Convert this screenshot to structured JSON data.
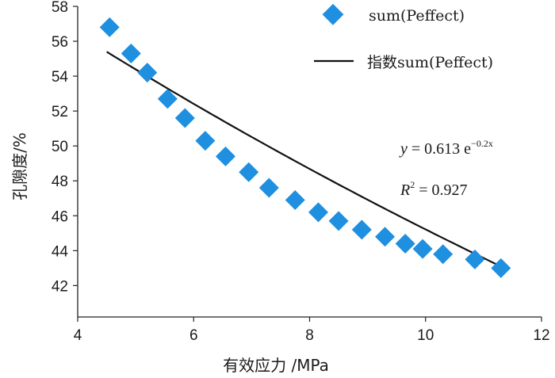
{
  "chart_data": {
    "type": "scatter",
    "xlabel": "有效应力 /MPa",
    "ylabel": "孔隙度/%",
    "xlim": [
      4,
      12
    ],
    "ylim": [
      40.2,
      58
    ],
    "xticks": [
      "4",
      "6",
      "8",
      "10",
      "12"
    ],
    "yticks": [
      "42",
      "44",
      "46",
      "48",
      "50",
      "52",
      "54",
      "56",
      "58"
    ],
    "legend_position": "top-right",
    "series": [
      {
        "name": "sum(Peffect)",
        "kind": "scatter",
        "marker": "diamond",
        "color": "#1f8fe0",
        "x": [
          4.55,
          4.92,
          5.2,
          5.55,
          5.85,
          6.2,
          6.55,
          6.95,
          7.3,
          7.75,
          8.15,
          8.5,
          8.9,
          9.3,
          9.65,
          9.95,
          10.3,
          10.85,
          11.3
        ],
        "y": [
          56.8,
          55.3,
          54.2,
          52.7,
          51.6,
          50.3,
          49.4,
          48.5,
          47.6,
          46.9,
          46.2,
          45.7,
          45.2,
          44.8,
          44.4,
          44.1,
          43.8,
          43.5,
          43.0
        ]
      },
      {
        "name": "指数sum(Peffect)",
        "kind": "line",
        "color": "#111111",
        "x_range": [
          4.5,
          11.3
        ],
        "y_start": 55.4,
        "y_end": 43.1
      }
    ],
    "annotation": {
      "equation_var": "y",
      "equation_eq": " = 0.613 e",
      "equation_exp": "−0.2x",
      "r2_var": "R",
      "r2_sup": "2",
      "r2_value": " = 0.927"
    }
  }
}
